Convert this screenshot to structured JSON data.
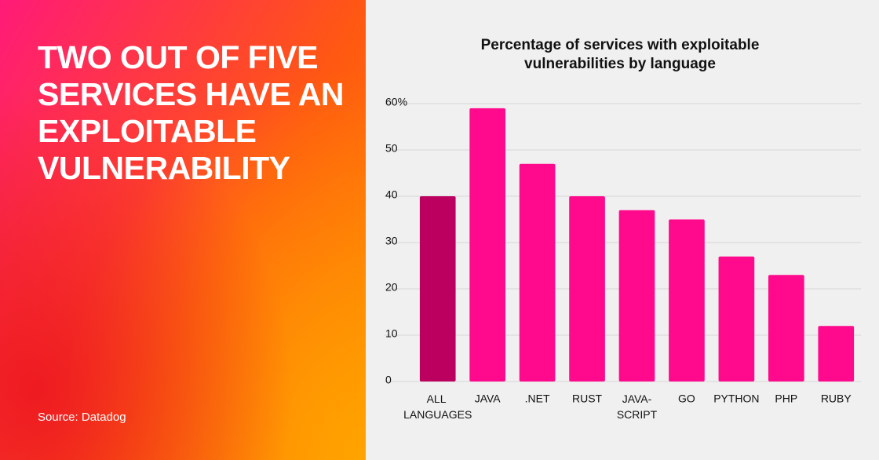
{
  "headline": "Two out of five services have an exploitable vulnerability",
  "source": "Source: Datadog",
  "chart_data": {
    "type": "bar",
    "title": "Percentage of services with exploitable vulnerabilities by language",
    "categories": [
      "ALL LANGUAGES",
      "JAVA",
      ".NET",
      "RUST",
      "JAVA-SCRIPT",
      "GO",
      "PYTHON",
      "PHP",
      "RUBY"
    ],
    "values": [
      40,
      59,
      47,
      40,
      37,
      35,
      27,
      23,
      12
    ],
    "colors": [
      "#bb0060",
      "#ff0a8c",
      "#ff0a8c",
      "#ff0a8c",
      "#ff0a8c",
      "#ff0a8c",
      "#ff0a8c",
      "#ff0a8c",
      "#ff0a8c"
    ],
    "ylim": [
      0,
      60
    ],
    "yticks": [
      0,
      10,
      20,
      30,
      40,
      50,
      {
        "value": 60,
        "label": "60%"
      }
    ],
    "grid": true
  }
}
